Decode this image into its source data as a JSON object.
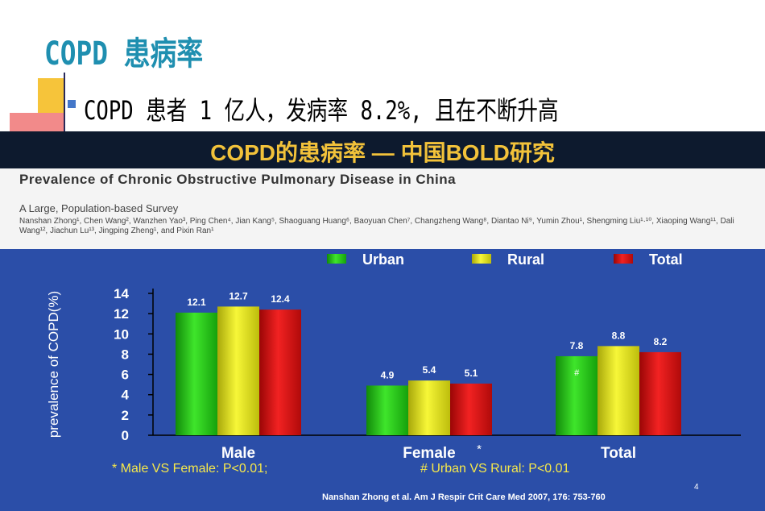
{
  "slide": {
    "title": "COPD 患病率",
    "bullet": "COPD 患者 1 亿人，发病率 8.2%, 且在不断升高",
    "page_number": "4"
  },
  "banner": {
    "title": "COPD的患病率 — 中国BOLD研究"
  },
  "paper": {
    "title": "Prevalence of Chronic Obstructive Pulmonary Disease in China",
    "subtitle": "A Large, Population-based Survey",
    "authors": "Nanshan Zhong¹, Chen Wang², Wanzhen Yao³, Ping Chen⁴, Jian Kang⁵, Shaoguang Huang⁶, Baoyuan Chen⁷, Changzheng Wang⁸, Diantao Ni⁹, Yumin Zhou¹, Shengming Liu¹·¹⁰, Xiaoping Wang¹¹, Dali Wang¹², Jiachun Lu¹³, Jingping Zheng¹, and Pixin Ran¹"
  },
  "colors": {
    "urban": "#22c814",
    "rural": "#e6e614",
    "total": "#e01010",
    "panel": "#2b4ea8",
    "accent_yellow": "#f6e84a"
  },
  "chart_data": {
    "type": "bar",
    "categories": [
      "Male",
      "Female",
      "Total"
    ],
    "series": [
      {
        "name": "Urban",
        "values": [
          12.1,
          4.9,
          7.8
        ]
      },
      {
        "name": "Rural",
        "values": [
          12.7,
          5.4,
          8.8
        ]
      },
      {
        "name": "Total",
        "values": [
          12.4,
          5.1,
          8.2
        ]
      }
    ],
    "data_labels": [
      [
        "12.1",
        "12.7",
        "12.4"
      ],
      [
        "4.9",
        "5.4",
        "5.1"
      ],
      [
        "7.8",
        "8.8",
        "8.2"
      ]
    ],
    "ylabel": "prevalence of COPD(%)",
    "ylim": [
      0,
      14
    ],
    "yticks": [
      "0",
      "2",
      "4",
      "6",
      "8",
      "10",
      "12",
      "14"
    ],
    "legend_placement": "top",
    "category_marks": {
      "Female": "*"
    },
    "bar_annotations": [
      {
        "category": "Total",
        "series": "Urban",
        "text": "#"
      }
    ],
    "notes": [
      "* Male VS Female: P<0.01;",
      "# Urban VS Rural: P<0.01"
    ],
    "source": "Nanshan Zhong et al.  Am J Respir Crit Care Med  2007, 176: 753-760"
  }
}
